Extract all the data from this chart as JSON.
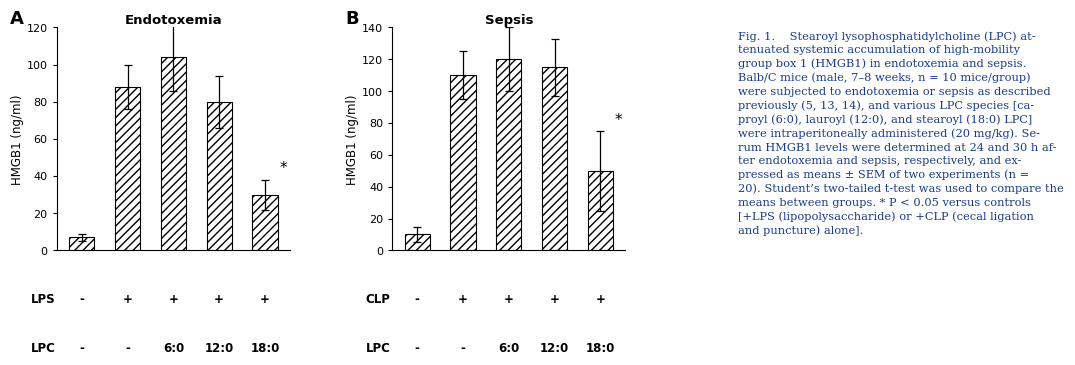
{
  "panel_A": {
    "title": "Endotoxemia",
    "label": "A",
    "bars": [
      7,
      88,
      104,
      80,
      30
    ],
    "errors": [
      2,
      12,
      18,
      14,
      8
    ],
    "ylim": [
      0,
      120
    ],
    "yticks": [
      0,
      20,
      40,
      60,
      80,
      100,
      120
    ],
    "ylabel": "HMGB1 (ng/ml)",
    "row1_label": "LPS",
    "row2_label": "LPC",
    "row1_vals": [
      "-",
      "+",
      "+",
      "+",
      "+"
    ],
    "row2_vals": [
      "-",
      "-",
      "6:0",
      "12:0",
      "18:0"
    ],
    "star_bar": 4,
    "star_label": "*"
  },
  "panel_B": {
    "title": "Sepsis",
    "label": "B",
    "bars": [
      10,
      110,
      120,
      115,
      50
    ],
    "errors": [
      5,
      15,
      20,
      18,
      25
    ],
    "ylim": [
      0,
      140
    ],
    "yticks": [
      0,
      20,
      40,
      60,
      80,
      100,
      120,
      140
    ],
    "ylabel": "HMGB1 (ng/ml)",
    "row1_label": "CLP",
    "row2_label": "LPC",
    "row1_vals": [
      "-",
      "+",
      "+",
      "+",
      "+"
    ],
    "row2_vals": [
      "-",
      "-",
      "6:0",
      "12:0",
      "18:0"
    ],
    "star_bar": 4,
    "star_label": "*"
  },
  "caption_fig": "Fig. 1.",
  "caption_body": "    Stearoyl lysophosphatidylcholine (LPC) at-\ntenuated systemic accumulation of high-mobility\ngroup box 1 (HMGB1) in endotoxemia and sepsis.\nBalb/C mice (male, 7–8 weeks, n = 10 mice/group)\nwere subjected to endotoxemia or sepsis as described\npreviously (5, 13, 14), and various LPC species [ca-\nproyl (6:0), lauroyl (12:0), and stearoyl (18:0) LPC]\nwere intraperitoneally administered (20 mg/kg). Se-\nrum HMGB1 levels were determined at 24 and 30 h af-\nter endotoxemia and sepsis, respectively, and ex-\npressed as means ± SEM of two experiments (n =\n20). Student’s two-tailed t-test was used to compare the\nmeans between groups. * P < 0.05 versus controls\n[+LPS (lipopolysaccharide) or +CLP (cecal ligation\nand puncture) alone].",
  "hatch_pattern": "////",
  "bar_color": "white",
  "bar_edge_color": "black",
  "figure_bg": "white",
  "caption_color": "#1a3a8a",
  "caption_fontsize": 8.2,
  "bar_width": 0.55
}
